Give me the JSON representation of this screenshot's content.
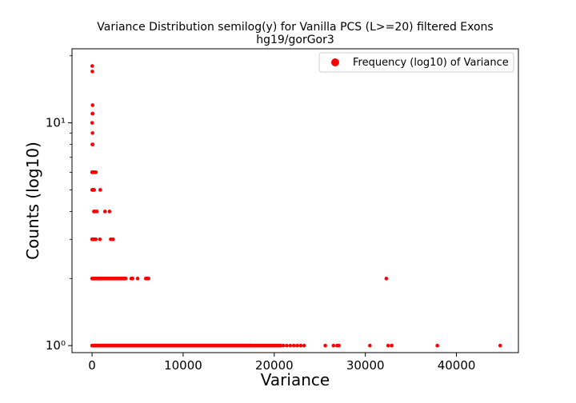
{
  "chart_data": {
    "type": "scatter",
    "title": "Variance Distribution semilog(y) for Vanilla PCS (L>=20) filtered Exons",
    "subtitle": "hg19/gorGor3",
    "xlabel": "Variance",
    "ylabel": "Counts (log10)",
    "yscale": "log",
    "xlim": [
      -2200,
      46800
    ],
    "ylim": [
      0.93,
      21.5
    ],
    "x_ticks": [
      0,
      10000,
      20000,
      30000,
      40000
    ],
    "x_tick_labels": [
      "0",
      "10000",
      "20000",
      "30000",
      "40000"
    ],
    "y_ticks": [
      1,
      10
    ],
    "y_tick_labels": [
      "10⁰",
      "10¹"
    ],
    "legend_position": "top-right",
    "grid": false,
    "colors": {
      "points": "#ff0000",
      "axes": "#000000",
      "background": "#ffffff"
    },
    "series": [
      {
        "name": "Frequency (log10) of Variance",
        "points": [
          [
            20,
            18
          ],
          [
            30,
            17
          ],
          [
            60,
            12
          ],
          [
            40,
            11
          ],
          [
            80,
            11
          ],
          [
            10,
            10
          ],
          [
            50,
            9
          ],
          [
            30,
            8
          ],
          [
            70,
            8
          ],
          [
            0,
            6
          ],
          [
            60,
            6
          ],
          [
            120,
            6
          ],
          [
            200,
            6
          ],
          [
            320,
            6
          ],
          [
            430,
            6
          ],
          [
            10,
            5
          ],
          [
            80,
            5
          ],
          [
            150,
            5
          ],
          [
            230,
            5
          ],
          [
            900,
            5
          ],
          [
            200,
            4
          ],
          [
            300,
            4
          ],
          [
            520,
            4
          ],
          [
            1420,
            4
          ],
          [
            1920,
            4
          ],
          [
            0,
            3
          ],
          [
            70,
            3
          ],
          [
            150,
            3
          ],
          [
            230,
            3
          ],
          [
            300,
            3
          ],
          [
            420,
            3
          ],
          [
            860,
            3
          ],
          [
            2050,
            3
          ],
          [
            2300,
            3
          ],
          [
            0,
            2
          ],
          [
            80,
            2
          ],
          [
            160,
            2
          ],
          [
            240,
            2
          ],
          [
            320,
            2
          ],
          [
            400,
            2
          ],
          [
            480,
            2
          ],
          [
            560,
            2
          ],
          [
            640,
            2
          ],
          [
            720,
            2
          ],
          [
            800,
            2
          ],
          [
            880,
            2
          ],
          [
            960,
            2
          ],
          [
            1040,
            2
          ],
          [
            1120,
            2
          ],
          [
            1200,
            2
          ],
          [
            1290,
            2
          ],
          [
            1380,
            2
          ],
          [
            1470,
            2
          ],
          [
            1560,
            2
          ],
          [
            1650,
            2
          ],
          [
            1740,
            2
          ],
          [
            1830,
            2
          ],
          [
            1920,
            2
          ],
          [
            2010,
            2
          ],
          [
            2100,
            2
          ],
          [
            2200,
            2
          ],
          [
            2300,
            2
          ],
          [
            2400,
            2
          ],
          [
            2500,
            2
          ],
          [
            2600,
            2
          ],
          [
            2700,
            2
          ],
          [
            2800,
            2
          ],
          [
            2900,
            2
          ],
          [
            3000,
            2
          ],
          [
            3100,
            2
          ],
          [
            3200,
            2
          ],
          [
            3300,
            2
          ],
          [
            3400,
            2
          ],
          [
            3500,
            2
          ],
          [
            3600,
            2
          ],
          [
            3700,
            2
          ],
          [
            4300,
            2
          ],
          [
            4450,
            2
          ],
          [
            5000,
            2
          ],
          [
            5900,
            2
          ],
          [
            6050,
            2
          ],
          [
            6200,
            2
          ],
          [
            32300,
            2
          ],
          [
            25600,
            1
          ],
          [
            26500,
            1
          ],
          [
            26900,
            1
          ],
          [
            27100,
            1
          ],
          [
            30500,
            1
          ],
          [
            32500,
            1
          ],
          [
            32900,
            1
          ],
          [
            37900,
            1
          ],
          [
            44800,
            1
          ]
        ],
        "dense_runs": [
          {
            "y": 1,
            "x_start": 0,
            "x_end": 17500,
            "step": 50
          },
          {
            "y": 1,
            "x_start": 17500,
            "x_end": 20800,
            "step": 140
          },
          {
            "y": 1,
            "x_start": 21000,
            "x_end": 23600,
            "step": 380
          }
        ]
      }
    ]
  }
}
